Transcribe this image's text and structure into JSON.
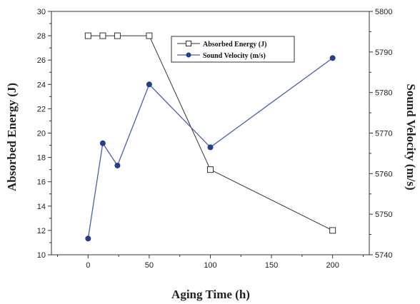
{
  "chart_data": {
    "type": "line",
    "xlabel": "Aging Time (h)",
    "ylabel_left": "Absorbed Energy (J)",
    "ylabel_right": "Sound Velocity (m/s)",
    "xlim": [
      -30,
      230
    ],
    "ylim_left": [
      10,
      30
    ],
    "ylim_right": [
      5740,
      5800
    ],
    "x_ticks": [
      0,
      50,
      100,
      150,
      200
    ],
    "y_left_ticks": [
      10,
      12,
      14,
      16,
      18,
      20,
      22,
      24,
      26,
      28,
      30
    ],
    "y_right_ticks": [
      5740,
      5750,
      5760,
      5770,
      5780,
      5790,
      5800
    ],
    "legend_position": "top-center",
    "series": [
      {
        "name": "Absorbed Energy (J)",
        "axis": "left",
        "marker": "open-square",
        "color": "#333333",
        "x": [
          0,
          12,
          24,
          50,
          100,
          200
        ],
        "y": [
          28,
          28,
          28,
          28,
          17,
          12
        ]
      },
      {
        "name": "Sound Velocity (m/s)",
        "axis": "right",
        "marker": "filled-circle",
        "color": "#4a5fa8",
        "marker_color": "#263d8c",
        "x": [
          0,
          12,
          24,
          50,
          100,
          200
        ],
        "y": [
          5744,
          5767.5,
          5762,
          5782,
          5766.5,
          5788.5
        ]
      }
    ]
  }
}
